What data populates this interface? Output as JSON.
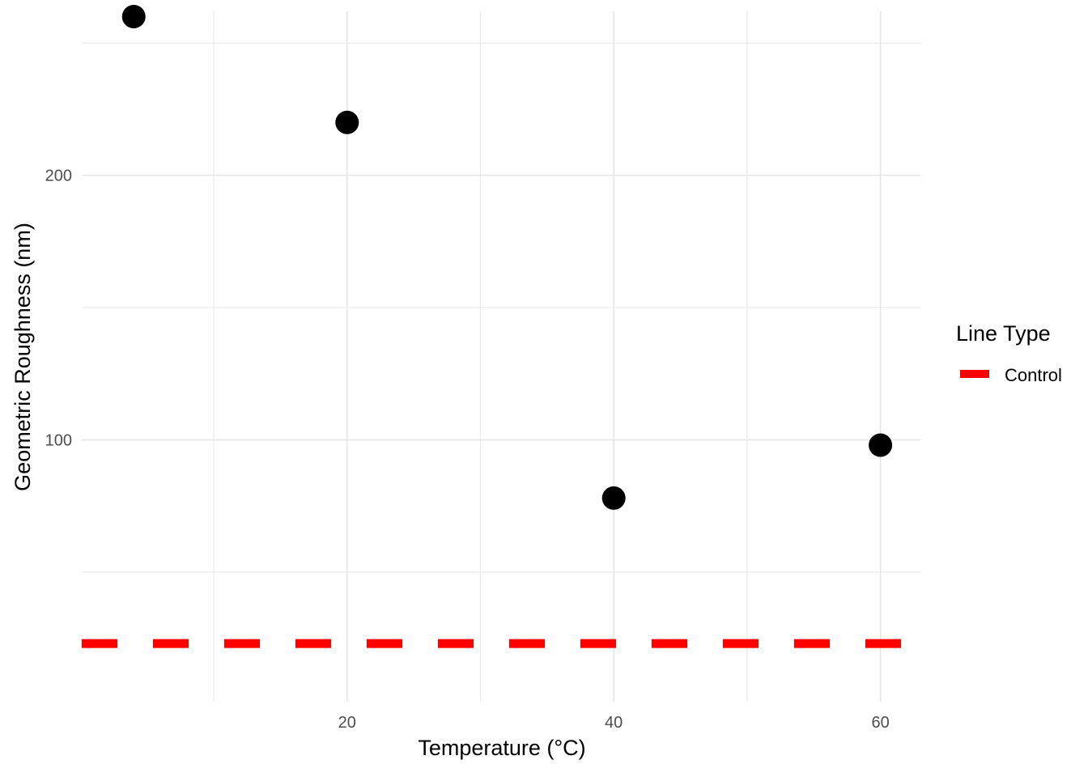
{
  "chart_data": {
    "type": "scatter",
    "title": "",
    "xlabel": "Temperature (°C)",
    "ylabel": "Geometric Roughness (nm)",
    "xlim": [
      0.1,
      63
    ],
    "ylim": [
      1,
      262
    ],
    "x_ticks": [
      20,
      40,
      60
    ],
    "x_tick_labels": [
      "20",
      "40",
      "60"
    ],
    "x_minor_ticks": [
      10,
      30,
      50
    ],
    "y_ticks": [
      100,
      200
    ],
    "y_tick_labels": [
      "100",
      "200"
    ],
    "y_minor_ticks": [
      50,
      150,
      250
    ],
    "grid": true,
    "series": [
      {
        "x": [
          4,
          20,
          40,
          60
        ],
        "y": [
          260,
          220,
          78,
          98
        ],
        "color": "#000000"
      }
    ],
    "reference_lines": [
      {
        "name": "Control",
        "y": 23,
        "color": "#ff0000",
        "style": "dashed"
      }
    ],
    "legend": {
      "title": "Line Type",
      "position": "right",
      "entries": [
        {
          "label": "Control",
          "color": "#ff0000"
        }
      ]
    }
  }
}
